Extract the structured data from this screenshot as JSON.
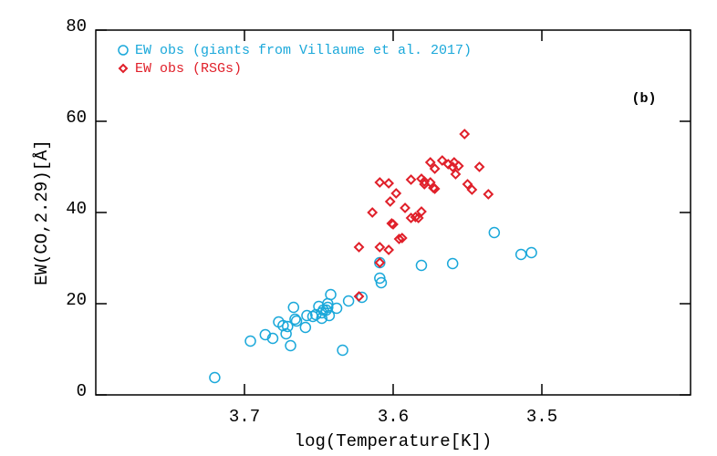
{
  "chart_data": {
    "type": "scatter",
    "xlabel": "log(Temperature[K])",
    "ylabel": "EW(CO,2.29)[Å]",
    "annotation": "(b)",
    "xlim": [
      3.8,
      3.4
    ],
    "ylim": [
      0,
      80
    ],
    "xticks": [
      3.7,
      3.6,
      3.5
    ],
    "yticks": [
      0,
      20,
      40,
      60,
      80
    ],
    "legend": "upper left",
    "series": [
      {
        "name": "EW obs (giants from Villaume et al. 2017)",
        "color": "#1aa8da",
        "marker": "circle",
        "x": [
          3.72,
          3.696,
          3.686,
          3.681,
          3.677,
          3.674,
          3.672,
          3.671,
          3.669,
          3.667,
          3.666,
          3.665,
          3.659,
          3.658,
          3.654,
          3.652,
          3.65,
          3.648,
          3.648,
          3.647,
          3.645,
          3.644,
          3.644,
          3.643,
          3.642,
          3.638,
          3.634,
          3.63,
          3.621,
          3.609,
          3.609,
          3.608,
          3.581,
          3.56,
          3.532,
          3.514,
          3.507
        ],
        "values": [
          3.8,
          11.8,
          13.2,
          12.4,
          16.0,
          15.2,
          13.4,
          15.0,
          10.8,
          19.2,
          16.6,
          16.2,
          14.8,
          17.4,
          17.2,
          17.6,
          19.4,
          18.0,
          16.8,
          18.6,
          18.6,
          19.2,
          20.0,
          17.4,
          22.0,
          19.0,
          9.8,
          20.6,
          21.4,
          29.0,
          25.6,
          24.6,
          28.4,
          28.8,
          35.6,
          30.8,
          31.2
        ]
      },
      {
        "name": "EW obs (RSGs)",
        "color": "#e0202a",
        "marker": "diamond",
        "x": [
          3.623,
          3.623,
          3.614,
          3.609,
          3.609,
          3.609,
          3.603,
          3.603,
          3.602,
          3.601,
          3.6,
          3.598,
          3.596,
          3.594,
          3.592,
          3.588,
          3.588,
          3.585,
          3.583,
          3.581,
          3.581,
          3.579,
          3.579,
          3.575,
          3.575,
          3.573,
          3.572,
          3.572,
          3.567,
          3.563,
          3.56,
          3.559,
          3.558,
          3.556,
          3.552,
          3.55,
          3.547,
          3.542,
          3.536
        ],
        "values": [
          32.4,
          21.6,
          40.0,
          29.0,
          46.6,
          32.4,
          46.4,
          31.8,
          42.4,
          37.6,
          37.4,
          44.2,
          34.2,
          34.4,
          41.0,
          38.8,
          47.2,
          39.0,
          38.8,
          40.2,
          47.4,
          46.8,
          46.2,
          46.6,
          51.0,
          45.4,
          45.2,
          49.6,
          51.4,
          50.6,
          50.0,
          51.0,
          48.4,
          50.2,
          57.2,
          46.2,
          45.0,
          50.0,
          44.0
        ]
      }
    ]
  }
}
